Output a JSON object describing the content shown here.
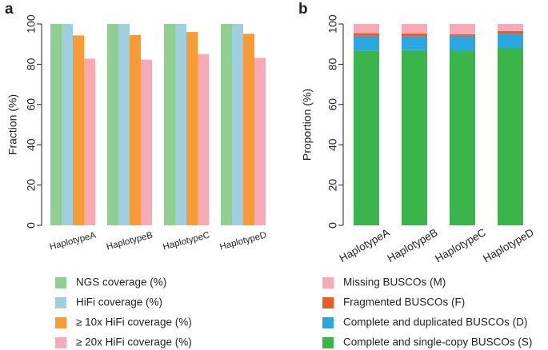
{
  "panel_labels": {
    "a": "a",
    "b": "b"
  },
  "chart_data": [
    {
      "id": "a",
      "type": "bar",
      "title": "",
      "xlabel": "",
      "ylabel": "Fraction (%)",
      "ylim": [
        0,
        100
      ],
      "yticks": [
        "0",
        "20",
        "40",
        "60",
        "80",
        "100"
      ],
      "categories": [
        "HaplotypeA",
        "HaplotypeB",
        "HaplotypeC",
        "HaplotypeD"
      ],
      "series": [
        {
          "name": "NGS coverage (%)",
          "color": "#8fcf8f",
          "values": [
            100,
            100,
            100,
            100
          ]
        },
        {
          "name": "HiFi coverage (%)",
          "color": "#9fcfdf",
          "values": [
            100,
            100,
            100,
            100
          ]
        },
        {
          "name": "≥ 10x HiFi coverage (%)",
          "color": "#f99a35",
          "values": [
            94.3,
            94.5,
            96.0,
            95.1
          ]
        },
        {
          "name": "≥ 20x HiFi coverage (%)",
          "color": "#f8a9b6",
          "values": [
            82.8,
            82.3,
            85.0,
            83.2
          ]
        }
      ],
      "legend_position": "bottom"
    },
    {
      "id": "b",
      "type": "bar",
      "stacked": true,
      "title": "",
      "xlabel": "",
      "ylabel": "Proportion (%)",
      "ylim": [
        0,
        100
      ],
      "yticks": [
        "0",
        "20",
        "40",
        "60",
        "80",
        "100"
      ],
      "categories": [
        "HaplotypeA",
        "HaplotypeB",
        "HaplotypeC",
        "HaplotypeD"
      ],
      "series": [
        {
          "name": "Complete and single-copy BUSCOs (S)",
          "color": "#3ab54a",
          "values": [
            86.8,
            87.0,
            86.5,
            87.9
          ]
        },
        {
          "name": "Complete and duplicated BUSCOs (D)",
          "color": "#2aa7df",
          "values": [
            7.3,
            6.9,
            7.6,
            7.2
          ]
        },
        {
          "name": "Fragmented BUSCOs (F)",
          "color": "#ee5a24",
          "values": [
            1.3,
            1.4,
            0.8,
            1.4
          ]
        },
        {
          "name": "Missing BUSCOs (M)",
          "color": "#f8a9b6",
          "values": [
            4.6,
            4.7,
            5.1,
            3.5
          ]
        }
      ],
      "legend_order": [
        "Missing BUSCOs (M)",
        "Fragmented BUSCOs (F)",
        "Complete and duplicated BUSCOs (D)",
        "Complete and single-copy BUSCOs (S)"
      ],
      "legend_position": "bottom"
    }
  ]
}
